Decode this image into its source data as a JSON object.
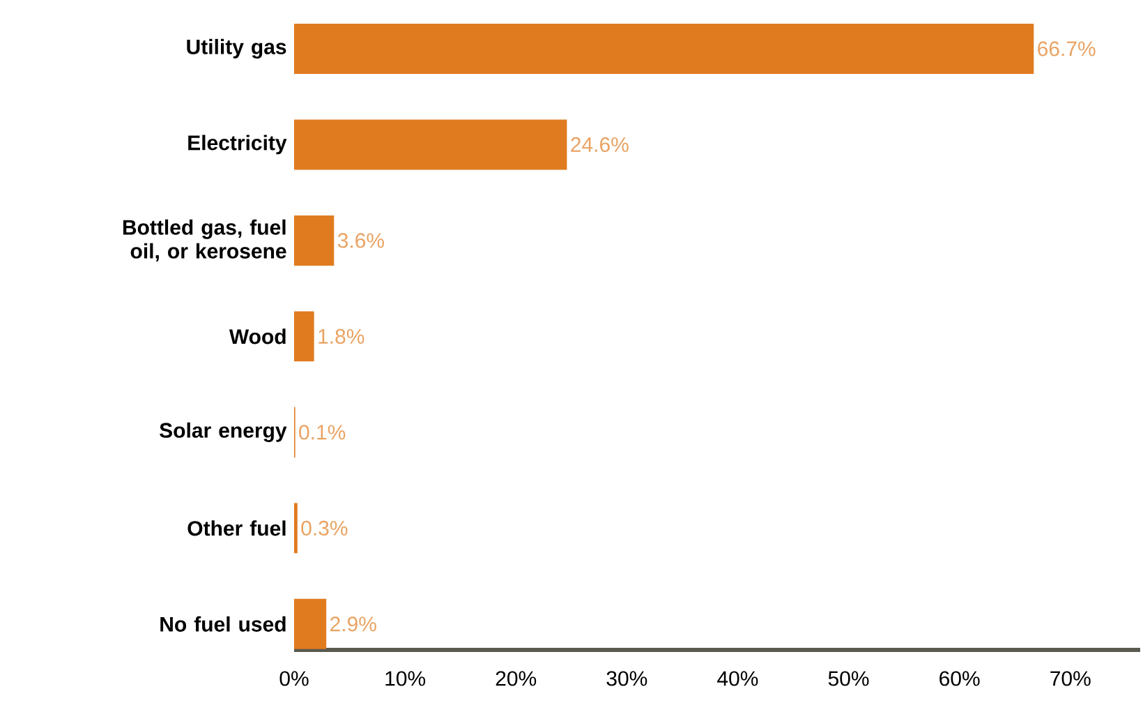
{
  "chart_data": {
    "type": "bar",
    "orientation": "horizontal",
    "categories": [
      "Utility gas",
      "Electricity",
      "Bottled gas, fuel oil, or kerosene",
      "Wood",
      "Solar energy",
      "Other fuel",
      "No fuel used"
    ],
    "values": [
      66.7,
      24.6,
      3.6,
      1.8,
      0.1,
      0.3,
      2.9
    ],
    "value_labels": [
      "66.7%",
      "24.6%",
      "3.6%",
      "1.8%",
      "0.1%",
      "0.3%",
      "2.9%"
    ],
    "color": "#e07b20",
    "xlim": [
      0,
      76.3
    ],
    "xticks": [
      {
        "value": 0,
        "label": "0%"
      },
      {
        "value": 10,
        "label": "10%"
      },
      {
        "value": 20,
        "label": "20%"
      },
      {
        "value": 30,
        "label": "30%"
      },
      {
        "value": 40,
        "label": "40%"
      },
      {
        "value": 50,
        "label": "50%"
      },
      {
        "value": 60,
        "label": "60%"
      },
      {
        "value": 70,
        "label": "70%"
      }
    ],
    "grid": false
  }
}
